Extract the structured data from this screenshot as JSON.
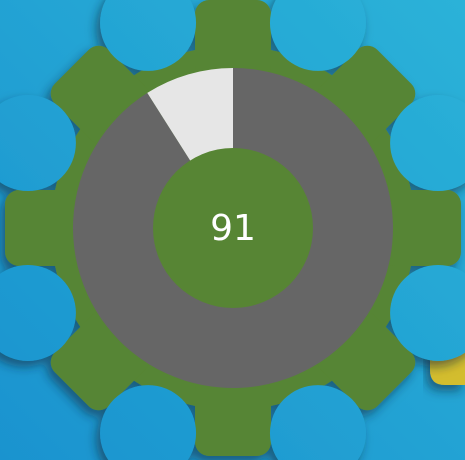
{
  "chart_data": {
    "type": "gauge",
    "value": 91,
    "ylim": [
      0,
      100
    ],
    "color": "#666666",
    "rest_color": "#e6e6e6"
  }
}
